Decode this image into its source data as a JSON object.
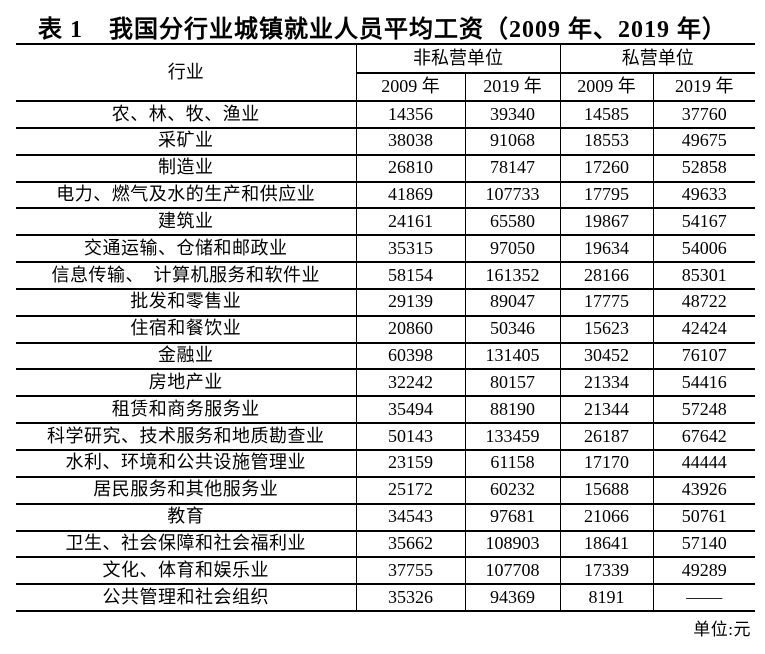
{
  "title": {
    "label": "表 1",
    "text": "我国分行业城镇就业人员平均工资（2009 年、2019 年）"
  },
  "unit_note": "单位:元",
  "table": {
    "industry_header": "行业",
    "group_headers": [
      "非私营单位",
      "私营单位"
    ],
    "year_headers": [
      "2009 年",
      "2019 年",
      "2009 年",
      "2019 年"
    ],
    "rows": [
      {
        "industry": "农、林、牧、渔业",
        "values": [
          "14356",
          "39340",
          "14585",
          "37760"
        ]
      },
      {
        "industry": "采矿业",
        "values": [
          "38038",
          "91068",
          "18553",
          "49675"
        ]
      },
      {
        "industry": "制造业",
        "values": [
          "26810",
          "78147",
          "17260",
          "52858"
        ]
      },
      {
        "industry": "电力、燃气及水的生产和供应业",
        "values": [
          "41869",
          "107733",
          "17795",
          "49633"
        ]
      },
      {
        "industry": "建筑业",
        "values": [
          "24161",
          "65580",
          "19867",
          "54167"
        ]
      },
      {
        "industry": "交通运输、仓储和邮政业",
        "values": [
          "35315",
          "97050",
          "19634",
          "54006"
        ]
      },
      {
        "industry": "信息传输、　计算机服务和软件业",
        "values": [
          "58154",
          "161352",
          "28166",
          "85301"
        ]
      },
      {
        "industry": "批发和零售业",
        "values": [
          "29139",
          "89047",
          "17775",
          "48722"
        ]
      },
      {
        "industry": "住宿和餐饮业",
        "values": [
          "20860",
          "50346",
          "15623",
          "42424"
        ]
      },
      {
        "industry": "金融业",
        "values": [
          "60398",
          "131405",
          "30452",
          "76107"
        ]
      },
      {
        "industry": "房地产业",
        "values": [
          "32242",
          "80157",
          "21334",
          "54416"
        ]
      },
      {
        "industry": "租赁和商务服务业",
        "values": [
          "35494",
          "88190",
          "21344",
          "57248"
        ]
      },
      {
        "industry": "科学研究、技术服务和地质勘查业",
        "values": [
          "50143",
          "133459",
          "26187",
          "67642"
        ]
      },
      {
        "industry": "水利、环境和公共设施管理业",
        "values": [
          "23159",
          "61158",
          "17170",
          "44444"
        ]
      },
      {
        "industry": "居民服务和其他服务业",
        "values": [
          "25172",
          "60232",
          "15688",
          "43926"
        ]
      },
      {
        "industry": "教育",
        "values": [
          "34543",
          "97681",
          "21066",
          "50761"
        ]
      },
      {
        "industry": "卫生、社会保障和社会福利业",
        "values": [
          "35662",
          "108903",
          "18641",
          "57140"
        ]
      },
      {
        "industry": "文化、体育和娱乐业",
        "values": [
          "37755",
          "107708",
          "17339",
          "49289"
        ]
      },
      {
        "industry": "公共管理和社会组织",
        "values": [
          "35326",
          "94369",
          "8191",
          "——"
        ]
      }
    ]
  }
}
